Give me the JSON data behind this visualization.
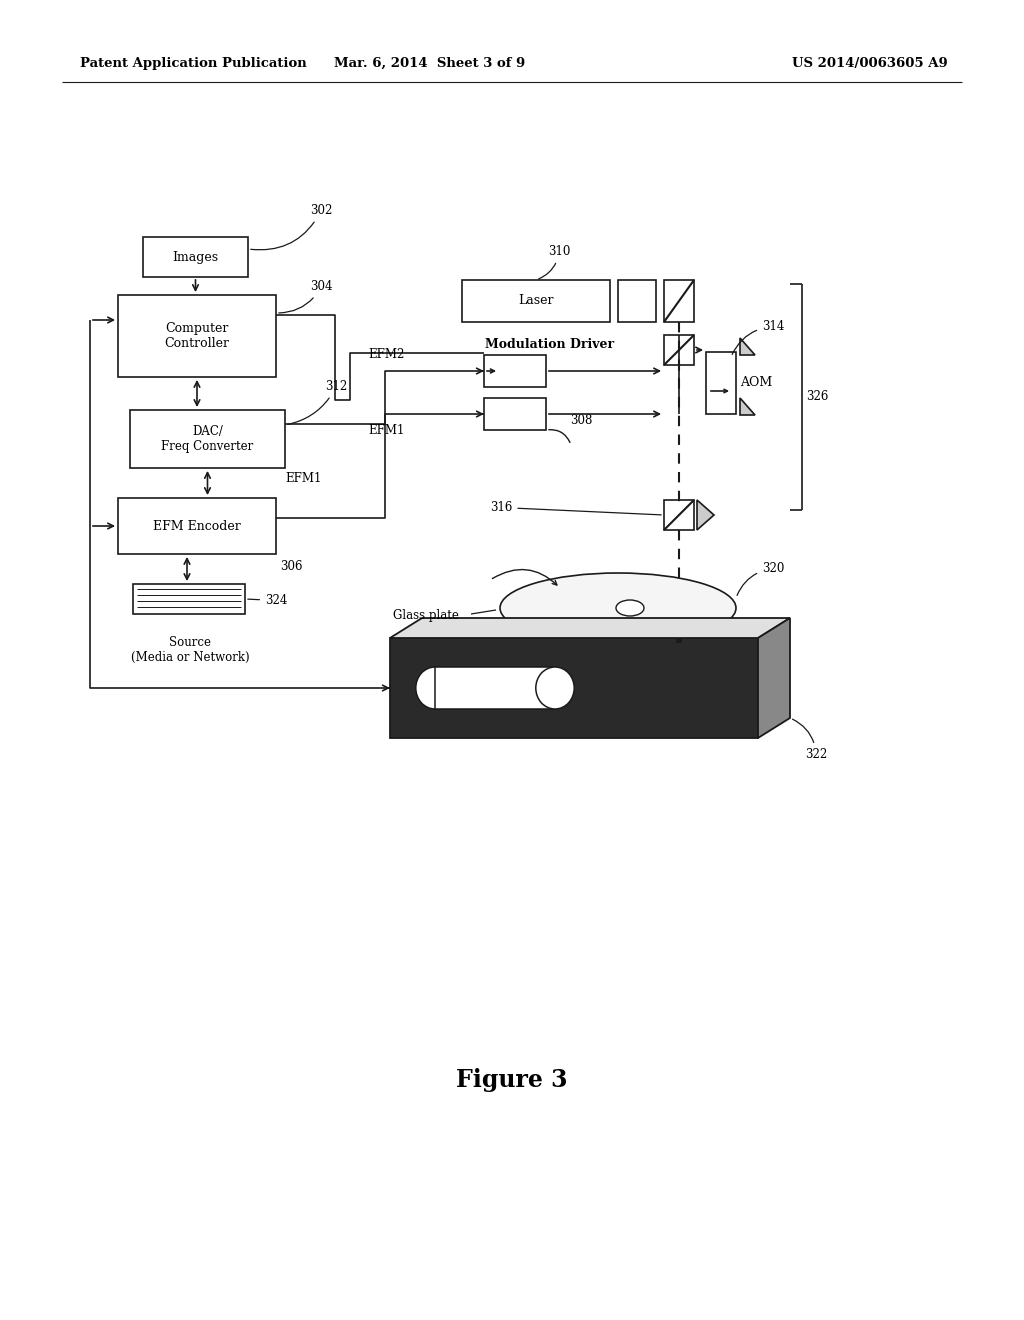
{
  "bg_color": "#ffffff",
  "header_left": "Patent Application Publication",
  "header_mid": "Mar. 6, 2014  Sheet 3 of 9",
  "header_right": "US 2014/0063605 A9",
  "figure_label": "Figure 3",
  "lc": "#1a1a1a"
}
